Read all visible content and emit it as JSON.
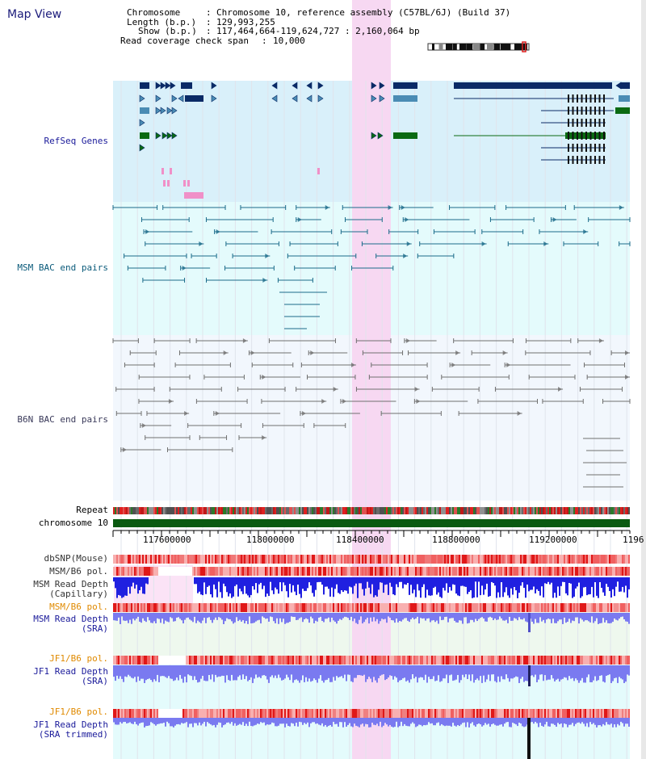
{
  "title": "Map View",
  "info": {
    "chromosome_key": "Chromosome",
    "chromosome_val": "Chromosome 10, reference assembly (C57BL/6J) (Build 37)",
    "length_key": "Length (b.p.)",
    "length_val": "129,993,255",
    "show_key": "Show (b.p.)",
    "show_val": "117,464,664-119,624,727 : 2,160,064 bp",
    "coverage_key": "Read coverage check span",
    "coverage_val": "10,000"
  },
  "tracks": {
    "refseq": "RefSeq Genes",
    "msm_bac": "MSM BAC end pairs",
    "b6n_bac": "B6N BAC end pairs",
    "repeat": "Repeat",
    "chromosome": "chromosome 10",
    "dbsnp": "dbSNP(Mouse)",
    "msm_pol1": "MSM/B6 pol.",
    "msm_depth_cap_1": "MSM Read Depth",
    "msm_depth_cap_2": "(Capillary)",
    "msm_pol2": "MSM/B6 pol.",
    "msm_depth_sra_1": "MSM Read Depth",
    "msm_depth_sra_2": "(SRA)",
    "jf1_pol1": "JF1/B6 pol.",
    "jf1_depth_1": "JF1 Read Depth",
    "jf1_depth_2": "(SRA)",
    "jf1_pol2": "JF1/B6 pol.",
    "jf1_trim_1": "JF1 Read Depth",
    "jf1_trim_2": "(SRA trimmed)"
  },
  "axis": {
    "ticks": [
      "117600000",
      "118000000",
      "118400000",
      "118800000",
      "119200000",
      "1196"
    ]
  },
  "colors": {
    "refseq_bg": "#d9f0fa",
    "msm_bg": "#e4fbfc",
    "b6n_bg": "#f2f7fd",
    "highlight": "#f7d8f2",
    "gene_dark": "#0a2a66",
    "gene_mid": "#4a8cb4",
    "gene_green": "#0a6a12",
    "msm_line": "#1b6b8a",
    "b6n_line": "#707070",
    "chrom_bar": "#0a5a10",
    "snp_red": "#e0201a",
    "depth_blue": "#2020e0",
    "depth_light": "#7a7af0",
    "label_navy": "#1a1a9a",
    "label_orange": "#e08a00"
  }
}
